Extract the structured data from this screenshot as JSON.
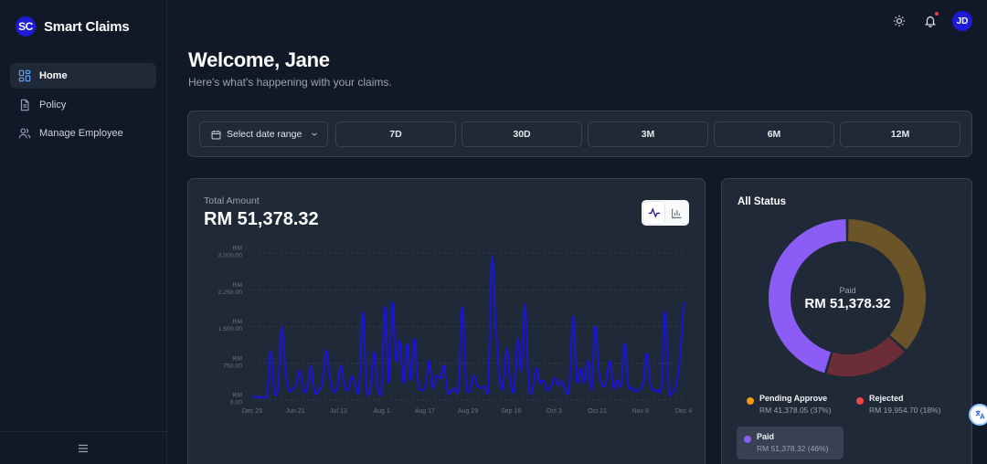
{
  "brand": {
    "logo": "SC",
    "name": "Smart Claims"
  },
  "sidebar": {
    "items": [
      {
        "label": "Home",
        "icon": "dashboard-icon",
        "active": true
      },
      {
        "label": "Policy",
        "icon": "document-icon",
        "active": false
      },
      {
        "label": "Manage Employee",
        "icon": "users-icon",
        "active": false
      }
    ],
    "collapse_icon": "hamburger-icon"
  },
  "topbar": {
    "theme_icon": "sun-icon",
    "notification_icon": "bell-icon",
    "avatar": "JD"
  },
  "header": {
    "title": "Welcome, Jane",
    "subtitle": "Here's what's happening with your claims."
  },
  "filters": {
    "date_range_label": "Select date range",
    "ranges": [
      "7D",
      "30D",
      "3M",
      "6M",
      "12M"
    ]
  },
  "total": {
    "label": "Total Amount",
    "value": "RM 51,378.32"
  },
  "chart_data": {
    "type": "line",
    "color": "#1a14d6",
    "y_ticks": [
      {
        "value": 0,
        "label": [
          "RM",
          "0.00"
        ]
      },
      {
        "value": 750,
        "label": [
          "RM",
          "750.00"
        ]
      },
      {
        "value": 1500,
        "label": [
          "RM",
          "1,500.00"
        ]
      },
      {
        "value": 2250,
        "label": [
          "RM",
          "2,250.00"
        ]
      },
      {
        "value": 3000,
        "label": [
          "RM",
          "3,000.00"
        ]
      }
    ],
    "ylim": [
      0,
      3000
    ],
    "x_labels": [
      "Dec 25",
      "Jun 21",
      "Jul 13",
      "Aug 1",
      "Aug 17",
      "Aug 29",
      "Sep 16",
      "Oct 3",
      "Oct 21",
      "Nov 9",
      "Dec 4"
    ],
    "values": [
      80,
      60,
      50,
      60,
      90,
      1000,
      180,
      250,
      1480,
      600,
      200,
      220,
      350,
      600,
      180,
      270,
      700,
      150,
      200,
      350,
      1020,
      500,
      180,
      250,
      700,
      300,
      200,
      480,
      300,
      220,
      1800,
      200,
      220,
      980,
      300,
      150,
      1900,
      350,
      2000,
      800,
      1200,
      350,
      1150,
      400,
      1250,
      350,
      200,
      300,
      800,
      250,
      500,
      450,
      700,
      150,
      200,
      230,
      250,
      1900,
      350,
      200,
      500,
      300,
      250,
      280,
      200,
      2900,
      1600,
      500,
      250,
      1050,
      380,
      200,
      1250,
      600,
      1950,
      300,
      200,
      650,
      350,
      400,
      200,
      280,
      450,
      300,
      380,
      200,
      250,
      1700,
      400,
      650,
      350,
      800,
      220,
      1500,
      600,
      300,
      350,
      800,
      250,
      400,
      300,
      1150,
      300,
      250,
      180,
      220,
      350,
      950,
      300,
      200,
      200,
      300,
      1800,
      200,
      150,
      300,
      850,
      2000
    ]
  },
  "status": {
    "title": "All Status",
    "center_label": "Paid",
    "center_value": "RM 51,378.32",
    "segments": [
      {
        "name": "Pending Approve",
        "value": 41378.05,
        "display": "RM 41,378.05 (37%)",
        "dot": "#f59e0b",
        "arc": "#6b5428"
      },
      {
        "name": "Rejected",
        "value": 19954.7,
        "display": "RM 19,954.70 (18%)",
        "dot": "#ef4444",
        "arc": "#6b2e37"
      },
      {
        "name": "Paid",
        "value": 51378.32,
        "display": "RM 51,378.32 (46%)",
        "dot": "#8b5cf6",
        "arc": "#8b5cf6"
      }
    ]
  }
}
